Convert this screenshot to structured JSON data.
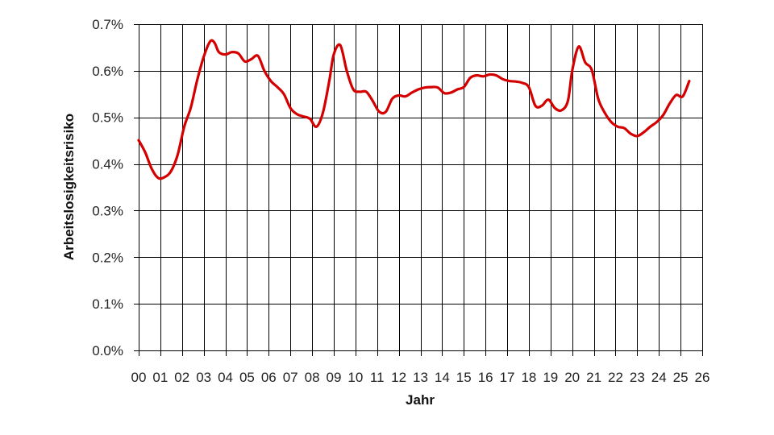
{
  "chart_data": {
    "type": "line",
    "title": "",
    "xlabel": "Jahr",
    "ylabel": "Arbeitslosigkeitsrisiko",
    "xlim": [
      0,
      26
    ],
    "ylim": [
      0,
      0.7
    ],
    "grid": true,
    "legend": "none",
    "x_ticks": [
      {
        "value": 0,
        "label": "00"
      },
      {
        "value": 1,
        "label": "01"
      },
      {
        "value": 2,
        "label": "02"
      },
      {
        "value": 3,
        "label": "03"
      },
      {
        "value": 4,
        "label": "04"
      },
      {
        "value": 5,
        "label": "05"
      },
      {
        "value": 6,
        "label": "06"
      },
      {
        "value": 7,
        "label": "07"
      },
      {
        "value": 8,
        "label": "08"
      },
      {
        "value": 9,
        "label": "09"
      },
      {
        "value": 10,
        "label": "10"
      },
      {
        "value": 11,
        "label": "11"
      },
      {
        "value": 12,
        "label": "12"
      },
      {
        "value": 13,
        "label": "13"
      },
      {
        "value": 14,
        "label": "14"
      },
      {
        "value": 15,
        "label": "15"
      },
      {
        "value": 16,
        "label": "16"
      },
      {
        "value": 17,
        "label": "17"
      },
      {
        "value": 18,
        "label": "18"
      },
      {
        "value": 19,
        "label": "19"
      },
      {
        "value": 20,
        "label": "20"
      },
      {
        "value": 21,
        "label": "21"
      },
      {
        "value": 22,
        "label": "22"
      },
      {
        "value": 23,
        "label": "23"
      },
      {
        "value": 24,
        "label": "24"
      },
      {
        "value": 25,
        "label": "25"
      },
      {
        "value": 26,
        "label": "26"
      }
    ],
    "y_ticks": [
      {
        "value": 0.0,
        "label": "0.0%"
      },
      {
        "value": 0.1,
        "label": "0.1%"
      },
      {
        "value": 0.2,
        "label": "0.2%"
      },
      {
        "value": 0.3,
        "label": "0.3%"
      },
      {
        "value": 0.4,
        "label": "0.4%"
      },
      {
        "value": 0.5,
        "label": "0.5%"
      },
      {
        "value": 0.6,
        "label": "0.6%"
      },
      {
        "value": 0.7,
        "label": "0.7%"
      }
    ],
    "series": [
      {
        "color": "#d40000",
        "x": [
          0,
          0.3,
          0.6,
          0.9,
          1.2,
          1.5,
          1.8,
          2.1,
          2.4,
          2.7,
          3.0,
          3.3,
          3.5,
          3.7,
          4.0,
          4.3,
          4.6,
          4.9,
          5.2,
          5.5,
          5.8,
          6.1,
          6.4,
          6.7,
          7.0,
          7.3,
          7.6,
          7.9,
          8.2,
          8.5,
          8.8,
          9.0,
          9.3,
          9.6,
          9.9,
          10.2,
          10.5,
          10.8,
          11.1,
          11.4,
          11.7,
          12.0,
          12.3,
          12.6,
          12.9,
          13.2,
          13.5,
          13.8,
          14.1,
          14.4,
          14.7,
          15.0,
          15.3,
          15.6,
          15.9,
          16.2,
          16.5,
          16.8,
          17.1,
          17.4,
          17.7,
          18.0,
          18.3,
          18.6,
          18.9,
          19.2,
          19.5,
          19.8,
          20.0,
          20.3,
          20.6,
          20.9,
          21.2,
          21.5,
          21.8,
          22.1,
          22.4,
          22.7,
          23.0,
          23.3,
          23.6,
          23.9,
          24.2,
          24.5,
          24.8,
          25.1,
          25.4
        ],
        "y": [
          0.451,
          0.425,
          0.39,
          0.37,
          0.372,
          0.385,
          0.42,
          0.48,
          0.52,
          0.58,
          0.63,
          0.663,
          0.66,
          0.64,
          0.635,
          0.64,
          0.637,
          0.62,
          0.625,
          0.632,
          0.6,
          0.578,
          0.565,
          0.55,
          0.52,
          0.507,
          0.502,
          0.497,
          0.48,
          0.51,
          0.58,
          0.635,
          0.655,
          0.6,
          0.56,
          0.555,
          0.555,
          0.535,
          0.512,
          0.512,
          0.54,
          0.547,
          0.545,
          0.553,
          0.56,
          0.564,
          0.565,
          0.564,
          0.552,
          0.553,
          0.56,
          0.565,
          0.585,
          0.59,
          0.588,
          0.592,
          0.59,
          0.582,
          0.578,
          0.577,
          0.574,
          0.565,
          0.525,
          0.525,
          0.538,
          0.52,
          0.515,
          0.535,
          0.6,
          0.652,
          0.618,
          0.602,
          0.54,
          0.51,
          0.49,
          0.48,
          0.477,
          0.465,
          0.46,
          0.468,
          0.48,
          0.49,
          0.505,
          0.53,
          0.548,
          0.545,
          0.578
        ]
      }
    ]
  }
}
